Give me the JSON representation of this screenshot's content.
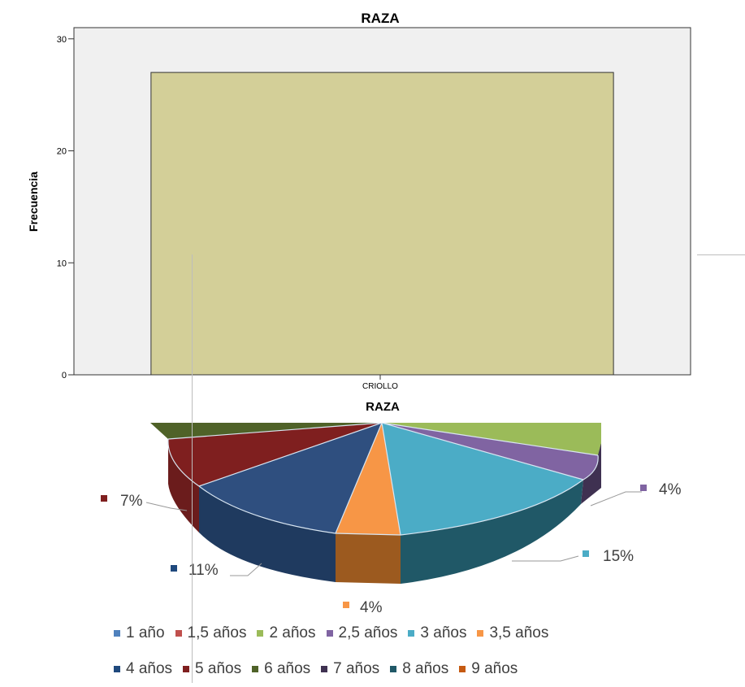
{
  "chart_data": [
    {
      "type": "bar",
      "title": "RAZA",
      "ylabel": "Frecuencia",
      "xlabel": "",
      "categories": [
        "CRIOLLO"
      ],
      "values": [
        27
      ],
      "ylim": [
        0,
        31
      ],
      "yticks": [
        0,
        10,
        20,
        30
      ],
      "ytick_labels": [
        "0",
        "10",
        "20",
        "30"
      ],
      "bar_color": "#d3cf98",
      "plot_background": "#f0f0f0"
    },
    {
      "type": "pie",
      "title": "RAZA",
      "categories": [
        "1 año",
        "1,5 años",
        "2 años",
        "2,5 años",
        "3 años",
        "3,5 años",
        "4 años",
        "5 años",
        "6 años",
        "7 años",
        "8 años",
        "9 años"
      ],
      "colors": [
        "#4f81bd",
        "#c0504d",
        "#9bbb59",
        "#8064a2",
        "#4bacc6",
        "#f79646",
        "#1f497d",
        "#7f1f1f",
        "#4f6228",
        "#3f3151",
        "#205867",
        "#c55a11"
      ],
      "visible_data_labels": [
        {
          "category": "2,5 años",
          "label": "4%"
        },
        {
          "category": "3 años",
          "label": "15%"
        },
        {
          "category": "3,5 años",
          "label": "4%"
        },
        {
          "category": "4 años",
          "label": "11%"
        },
        {
          "category": "5 años",
          "label": "7%"
        }
      ],
      "legend": "bottom"
    }
  ]
}
